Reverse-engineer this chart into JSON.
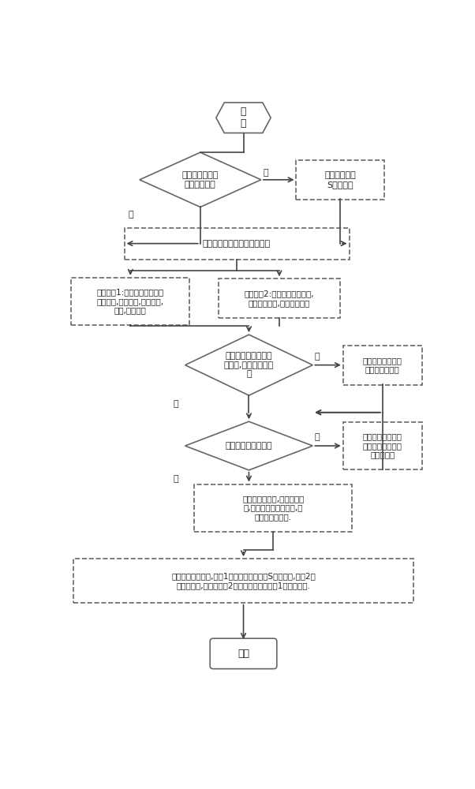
{
  "bg_color": "#ffffff",
  "line_color": "#444444",
  "box_border_color": "#666666",
  "text_color": "#222222",
  "font_size": 9,
  "small_font_size": 8,
  "start_label": "开\n始",
  "end_label": "结束",
  "diamond1_label": "连接产品前矢网\n是否经过校准",
  "box_right1_label": "对矢网按标准\nS参数校准",
  "box_split_label": "将测试界面分为两个测试通道",
  "box_ch1_label": "测试通道1:按要求设置产品的\n测试功率,中心频率,测试带宽,\n点数,中频带宽",
  "box_ch2_label": "测试通道2:保持测试电缆开路,\n进入时域功能,设置相关参数",
  "diamond2_label": "是否设置合适的带宽\n和点数,避免混叠和模\n糊",
  "box_right2_label": "按要求设置合适的\n产品带宽和点数",
  "diamond3_label": "是否正确设置时间门",
  "box_right3_label": "时间门的位置应对\n应测试电缆和被测\n件的连接处",
  "box_cable_label": "完成时域设置后,改回频域测\n试,测试电缆的反射参数,作\n为电缆补偿数据.",
  "box_final_label": "连接矢网和被测件,通道1进行正常的被测件S参数测试,通道2作\n为监测通道,将实时通道2的测试数据补偿通道1的测试结果.",
  "yes_label": "是",
  "no_label": "否"
}
